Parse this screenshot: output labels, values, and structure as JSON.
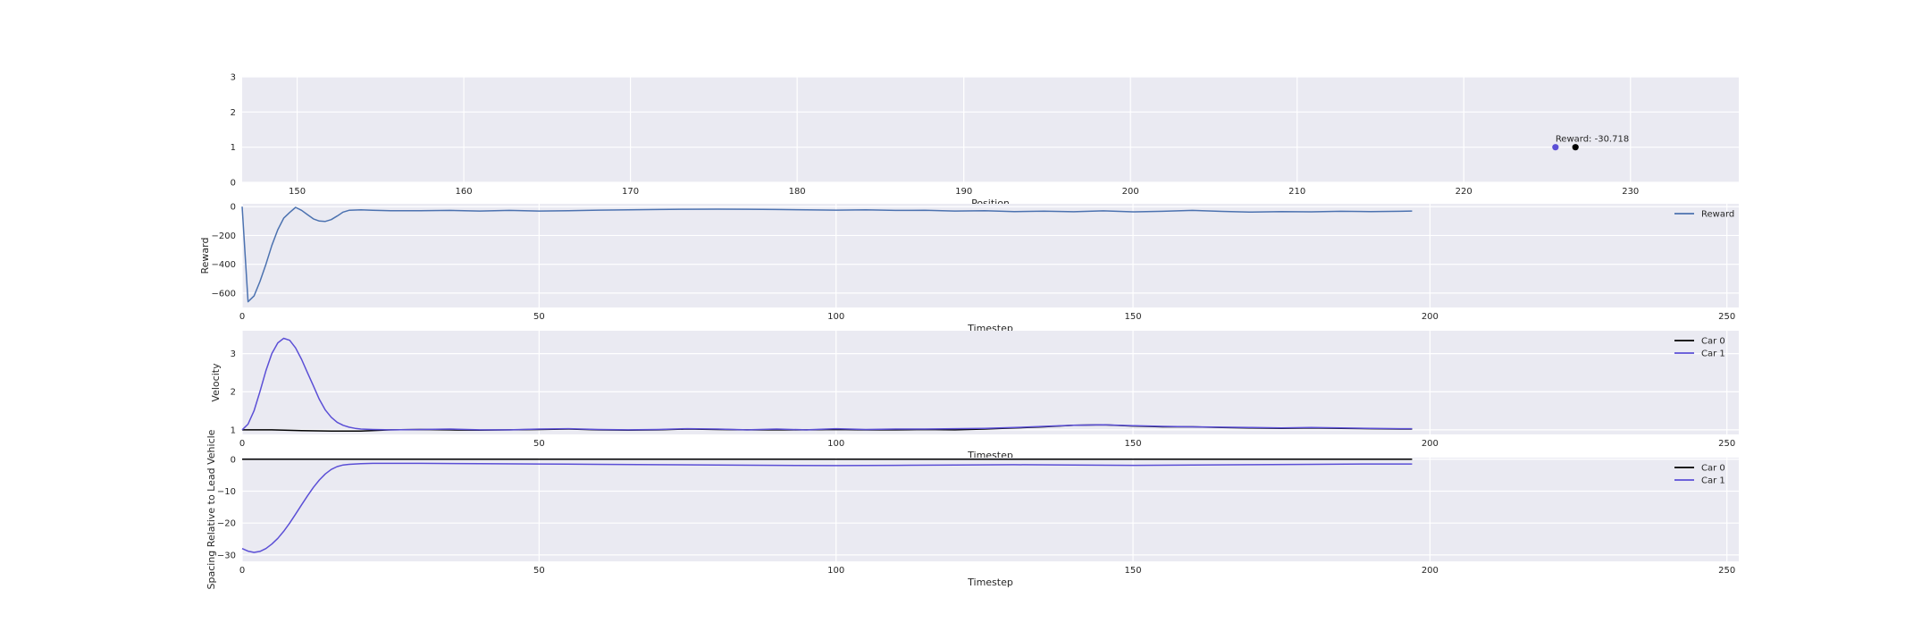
{
  "chart_data": [
    {
      "type": "scatter",
      "xlabel": "Position",
      "ylabel": "",
      "xlim": [
        146.7,
        236.5
      ],
      "ylim": [
        0,
        3
      ],
      "xticks": [
        150,
        160,
        170,
        180,
        190,
        200,
        210,
        220,
        230
      ],
      "yticks": [
        0,
        1,
        2,
        3
      ],
      "grid": true,
      "points": [
        {
          "x": 225.5,
          "y": 1,
          "color": "#5b4fd6"
        },
        {
          "x": 226.7,
          "y": 1,
          "color": "#000000"
        }
      ],
      "annotations": [
        {
          "text": "Reward: -30.718",
          "x": 225.5,
          "y": 1.0
        }
      ]
    },
    {
      "type": "line",
      "xlabel": "Timestep",
      "ylabel": "Reward",
      "xlim": [
        0,
        252
      ],
      "ylim": [
        -700,
        20
      ],
      "xticks": [
        0,
        50,
        100,
        150,
        200,
        250
      ],
      "yticks": [
        0,
        -200,
        -400,
        -600
      ],
      "grid": true,
      "legend": "top-right",
      "series": [
        {
          "name": "Reward",
          "color": "#4c72b0",
          "x": [
            0,
            1,
            2,
            3,
            4,
            5,
            6,
            7,
            8,
            9,
            10,
            11,
            12,
            13,
            14,
            15,
            16,
            17,
            18,
            20,
            22,
            25,
            30,
            35,
            40,
            45,
            50,
            55,
            60,
            65,
            70,
            75,
            80,
            85,
            90,
            95,
            100,
            105,
            110,
            115,
            120,
            125,
            130,
            135,
            140,
            145,
            150,
            155,
            160,
            165,
            170,
            175,
            180,
            185,
            190,
            195,
            197
          ],
          "values": [
            0,
            -660,
            -620,
            -520,
            -400,
            -270,
            -160,
            -80,
            -40,
            -5,
            -25,
            -55,
            -85,
            -100,
            -102,
            -90,
            -65,
            -38,
            -25,
            -22,
            -25,
            -28,
            -28,
            -26,
            -30,
            -26,
            -30,
            -28,
            -24,
            -22,
            -20,
            -18,
            -17,
            -18,
            -20,
            -22,
            -24,
            -22,
            -26,
            -25,
            -30,
            -28,
            -34,
            -31,
            -35,
            -29,
            -36,
            -32,
            -26,
            -33,
            -38,
            -34,
            -36,
            -32,
            -34,
            -32,
            -30
          ]
        }
      ]
    },
    {
      "type": "line",
      "xlabel": "Timestep",
      "ylabel": "Velocity",
      "xlim": [
        0,
        252
      ],
      "ylim": [
        0.88,
        3.6
      ],
      "xticks": [
        0,
        50,
        100,
        150,
        200,
        250
      ],
      "yticks": [
        1,
        2,
        3
      ],
      "grid": true,
      "legend": "top-right",
      "series": [
        {
          "name": "Car 0",
          "color": "#000000",
          "x": [
            0,
            5,
            10,
            15,
            20,
            25,
            30,
            35,
            40,
            45,
            50,
            55,
            60,
            65,
            70,
            75,
            80,
            85,
            90,
            95,
            100,
            105,
            110,
            115,
            120,
            125,
            130,
            135,
            140,
            145,
            150,
            155,
            160,
            165,
            170,
            175,
            180,
            185,
            190,
            195,
            197
          ],
          "values": [
            1.0,
            1.0,
            0.98,
            0.97,
            0.97,
            1.0,
            1.01,
            1.0,
            0.99,
            1.0,
            1.01,
            1.02,
            1.0,
            0.99,
            1.0,
            1.02,
            1.01,
            1.0,
            1.0,
            1.0,
            1.01,
            1.0,
            1.0,
            1.01,
            1.0,
            1.02,
            1.05,
            1.08,
            1.12,
            1.13,
            1.1,
            1.08,
            1.08,
            1.06,
            1.05,
            1.04,
            1.05,
            1.04,
            1.03,
            1.02,
            1.02
          ]
        },
        {
          "name": "Car 1",
          "color": "#5b4fd6",
          "x": [
            0,
            1,
            2,
            3,
            4,
            5,
            6,
            7,
            8,
            9,
            10,
            11,
            12,
            13,
            14,
            15,
            16,
            17,
            18,
            19,
            20,
            22,
            25,
            30,
            35,
            40,
            45,
            50,
            55,
            60,
            65,
            70,
            75,
            80,
            85,
            90,
            95,
            100,
            105,
            110,
            115,
            120,
            125,
            130,
            135,
            140,
            145,
            150,
            155,
            160,
            165,
            170,
            175,
            180,
            185,
            190,
            195,
            197
          ],
          "values": [
            1.0,
            1.15,
            1.5,
            2.0,
            2.55,
            3.0,
            3.28,
            3.4,
            3.35,
            3.15,
            2.85,
            2.5,
            2.15,
            1.8,
            1.52,
            1.33,
            1.2,
            1.12,
            1.07,
            1.04,
            1.02,
            1.01,
            1.0,
            1.01,
            1.02,
            1.0,
            1.0,
            1.02,
            1.03,
            1.01,
            1.0,
            1.01,
            1.03,
            1.02,
            1.0,
            1.02,
            1.0,
            1.03,
            1.01,
            1.02,
            1.02,
            1.03,
            1.04,
            1.06,
            1.09,
            1.12,
            1.13,
            1.11,
            1.09,
            1.08,
            1.07,
            1.06,
            1.05,
            1.06,
            1.05,
            1.04,
            1.03,
            1.03
          ]
        }
      ]
    },
    {
      "type": "line",
      "xlabel": "Timestep",
      "ylabel": "Spacing Relative to Lead Vehicle",
      "xlim": [
        0,
        252
      ],
      "ylim": [
        -32,
        0.5
      ],
      "xticks": [
        0,
        50,
        100,
        150,
        200,
        250
      ],
      "yticks": [
        0,
        -10,
        -20,
        -30
      ],
      "grid": true,
      "legend": "top-right",
      "series": [
        {
          "name": "Car 0",
          "color": "#000000",
          "x": [
            0,
            197
          ],
          "values": [
            0,
            0
          ]
        },
        {
          "name": "Car 1",
          "color": "#5b4fd6",
          "x": [
            0,
            1,
            2,
            3,
            4,
            5,
            6,
            7,
            8,
            9,
            10,
            11,
            12,
            13,
            14,
            15,
            16,
            17,
            18,
            19,
            20,
            22,
            25,
            30,
            40,
            50,
            60,
            70,
            80,
            90,
            100,
            110,
            120,
            130,
            140,
            150,
            160,
            170,
            180,
            190,
            197
          ],
          "values": [
            -28,
            -28.8,
            -29.2,
            -28.9,
            -28.0,
            -26.6,
            -24.8,
            -22.6,
            -20.0,
            -17.2,
            -14.3,
            -11.5,
            -8.8,
            -6.5,
            -4.6,
            -3.2,
            -2.3,
            -1.8,
            -1.6,
            -1.5,
            -1.4,
            -1.3,
            -1.3,
            -1.3,
            -1.4,
            -1.5,
            -1.6,
            -1.7,
            -1.8,
            -1.9,
            -2.0,
            -1.9,
            -1.8,
            -1.7,
            -1.8,
            -1.9,
            -1.8,
            -1.7,
            -1.6,
            -1.5,
            -1.5
          ]
        }
      ]
    }
  ]
}
